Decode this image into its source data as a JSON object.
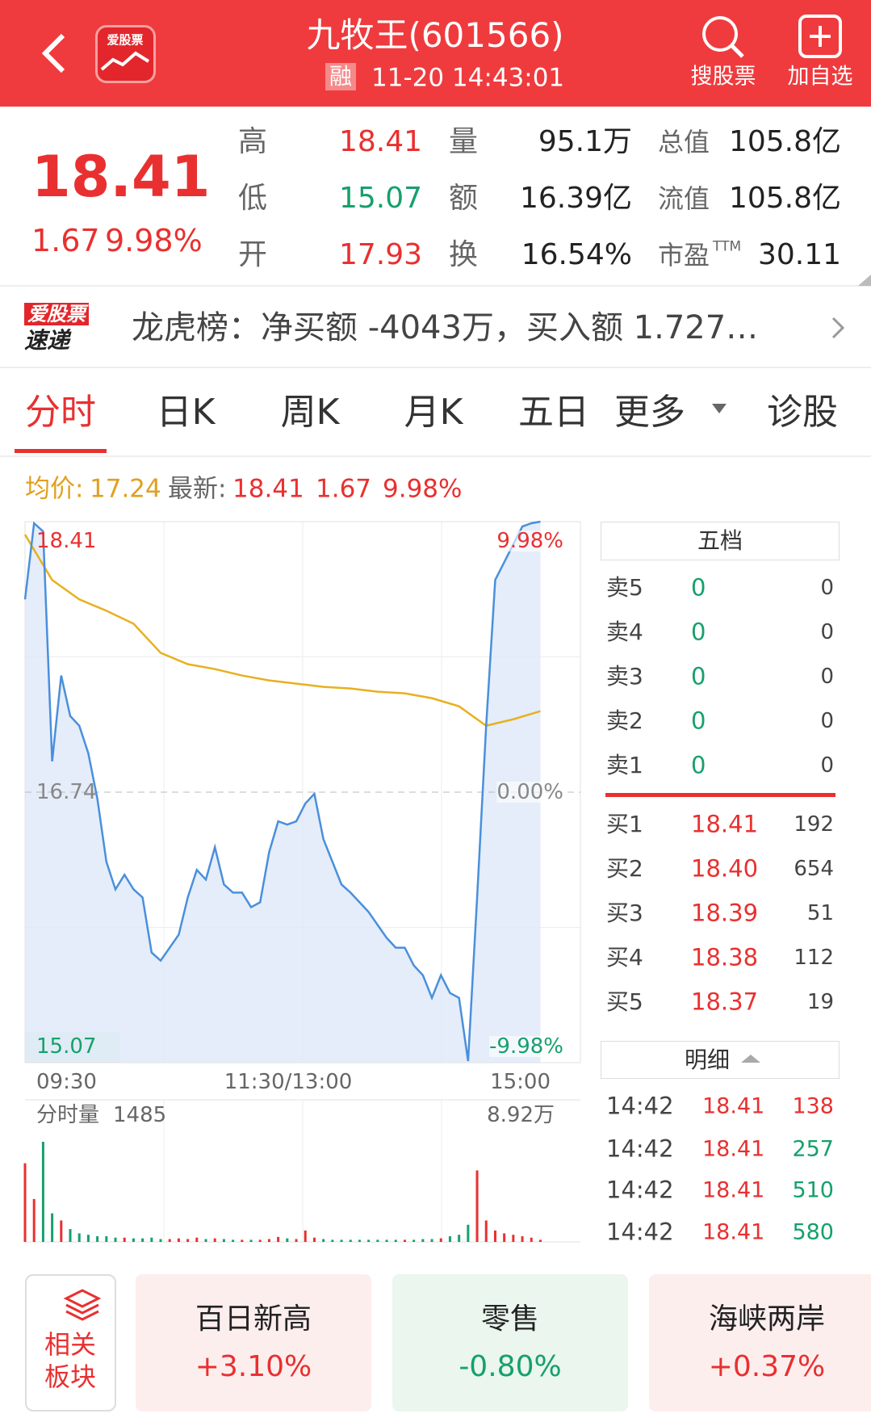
{
  "header": {
    "logo": "爱股票",
    "title": "九牧王(601566)",
    "badge": "融",
    "time": "11-20 14:43:01",
    "actions": [
      "搜股票",
      "加自选"
    ]
  },
  "quote": {
    "price": "18.41",
    "change": "1.67",
    "change_pct": "9.98%",
    "stats": [
      [
        {
          "label": "高",
          "value": "18.41",
          "color": "#e93030"
        },
        {
          "label": "量",
          "value": "95.1万",
          "color": "#222222"
        },
        {
          "label": "总值",
          "value": "105.8亿",
          "color": "#222222"
        }
      ],
      [
        {
          "label": "低",
          "value": "15.07",
          "color": "#16a06c"
        },
        {
          "label": "额",
          "value": "16.39亿",
          "color": "#222222"
        },
        {
          "label": "流值",
          "value": "105.8亿",
          "color": "#222222"
        }
      ],
      [
        {
          "label": "开",
          "value": "17.93",
          "color": "#e93030"
        },
        {
          "label": "换",
          "value": "16.54%",
          "color": "#222222"
        },
        {
          "label": "市盈",
          "sup": "TTM",
          "value": "30.11",
          "color": "#222222"
        }
      ]
    ]
  },
  "banner": {
    "logo_top": "爱股票",
    "logo_bottom": "速递",
    "text": "龙虎榜：净买额 -4043万，买入额 1.727…"
  },
  "tabs": {
    "items": [
      "分时",
      "日K",
      "周K",
      "月K",
      "五日",
      "更多",
      "诊股"
    ],
    "active": 0
  },
  "info": {
    "avg_label": "均价:",
    "avg": "17.24",
    "latest_label": "最新:",
    "latest": "18.41",
    "change": "1.67",
    "pct": "9.98%"
  },
  "chart_data": {
    "type": "line",
    "series": [
      {
        "color": "#4a8fdc",
        "values": [
          17.93,
          18.4,
          18.35,
          16.93,
          17.46,
          17.21,
          17.15,
          16.98,
          16.7,
          16.31,
          16.14,
          16.23,
          16.14,
          16.09,
          15.75,
          15.7,
          15.78,
          15.86,
          16.09,
          16.26,
          16.2,
          16.4,
          16.17,
          16.12,
          16.12,
          16.03,
          16.06,
          16.37,
          16.56,
          16.54,
          16.56,
          16.67,
          16.73,
          16.45,
          16.31,
          16.17,
          16.12,
          16.06,
          16.0,
          15.92,
          15.84,
          15.78,
          15.78,
          15.67,
          15.61,
          15.47,
          15.61,
          15.5,
          15.47,
          15.08,
          16.09,
          17.15,
          18.05,
          18.16,
          18.27,
          18.38,
          18.4,
          18.41
        ]
      },
      {
        "color": "#e8b020",
        "values": [
          18.33,
          18.05,
          17.93,
          17.86,
          17.78,
          17.6,
          17.53,
          17.5,
          17.46,
          17.43,
          17.41,
          17.39,
          17.38,
          17.36,
          17.35,
          17.32,
          17.27,
          17.15,
          17.19,
          17.24
        ]
      }
    ],
    "ylim": [
      15.07,
      18.41
    ],
    "yticks": [
      15.07,
      16.74,
      18.41
    ],
    "pct_ticks": [
      {
        "value": 15.07,
        "label": "-9.98%"
      },
      {
        "value": 16.74,
        "label": "0.00%"
      },
      {
        "value": 18.41,
        "label": "9.98%"
      }
    ],
    "xticks": [
      "09:30",
      "11:30/13:00",
      "15:00"
    ],
    "volume": {
      "label": "分时量",
      "max": {
        "value": 89200,
        "label": "8.92万"
      },
      "up_color": "#e93030",
      "down_color": "#16a06c",
      "values": [
        55000,
        30000,
        70000,
        20000,
        15000,
        9000,
        6000,
        5000,
        4000,
        4000,
        3000,
        3000,
        2500,
        2500,
        3000,
        2000,
        2000,
        2500,
        2000,
        3000,
        2000,
        2500,
        2000,
        1500,
        1500,
        1500,
        1500,
        2000,
        3500,
        2500,
        2000,
        8000,
        3000,
        2000,
        1500,
        1500,
        1500,
        1500,
        1500,
        1500,
        1500,
        1500,
        1500,
        1500,
        2000,
        2000,
        2500,
        4000,
        5000,
        12000,
        50000,
        15000,
        8000,
        6000,
        5000,
        4000,
        3000,
        1485
      ]
    }
  },
  "order_book": {
    "title": "五档",
    "asks": [
      {
        "label": "卖5",
        "price": "0",
        "volume": "0"
      },
      {
        "label": "卖4",
        "price": "0",
        "volume": "0"
      },
      {
        "label": "卖3",
        "price": "0",
        "volume": "0"
      },
      {
        "label": "卖2",
        "price": "0",
        "volume": "0"
      },
      {
        "label": "卖1",
        "price": "0",
        "volume": "0"
      }
    ],
    "bids": [
      {
        "label": "买1",
        "price": "18.41",
        "volume": "192"
      },
      {
        "label": "买2",
        "price": "18.40",
        "volume": "654"
      },
      {
        "label": "买3",
        "price": "18.39",
        "volume": "51"
      },
      {
        "label": "买4",
        "price": "18.38",
        "volume": "112"
      },
      {
        "label": "买5",
        "price": "18.37",
        "volume": "19"
      }
    ]
  },
  "trades": {
    "title": "明细",
    "rows": [
      {
        "time": "14:42",
        "price": "18.41",
        "volume": "138",
        "color": "#e93030"
      },
      {
        "time": "14:42",
        "price": "18.41",
        "volume": "257",
        "color": "#16a06c"
      },
      {
        "time": "14:42",
        "price": "18.41",
        "volume": "510",
        "color": "#16a06c"
      },
      {
        "time": "14:42",
        "price": "18.41",
        "volume": "580",
        "color": "#16a06c"
      }
    ]
  },
  "sectors": {
    "title": [
      "相关",
      "板块"
    ],
    "items": [
      {
        "name": "百日新高",
        "change": "+3.10%"
      },
      {
        "name": "零售",
        "change": "-0.80%"
      },
      {
        "name": "海峡两岸",
        "change": "+0.37%"
      }
    ]
  }
}
